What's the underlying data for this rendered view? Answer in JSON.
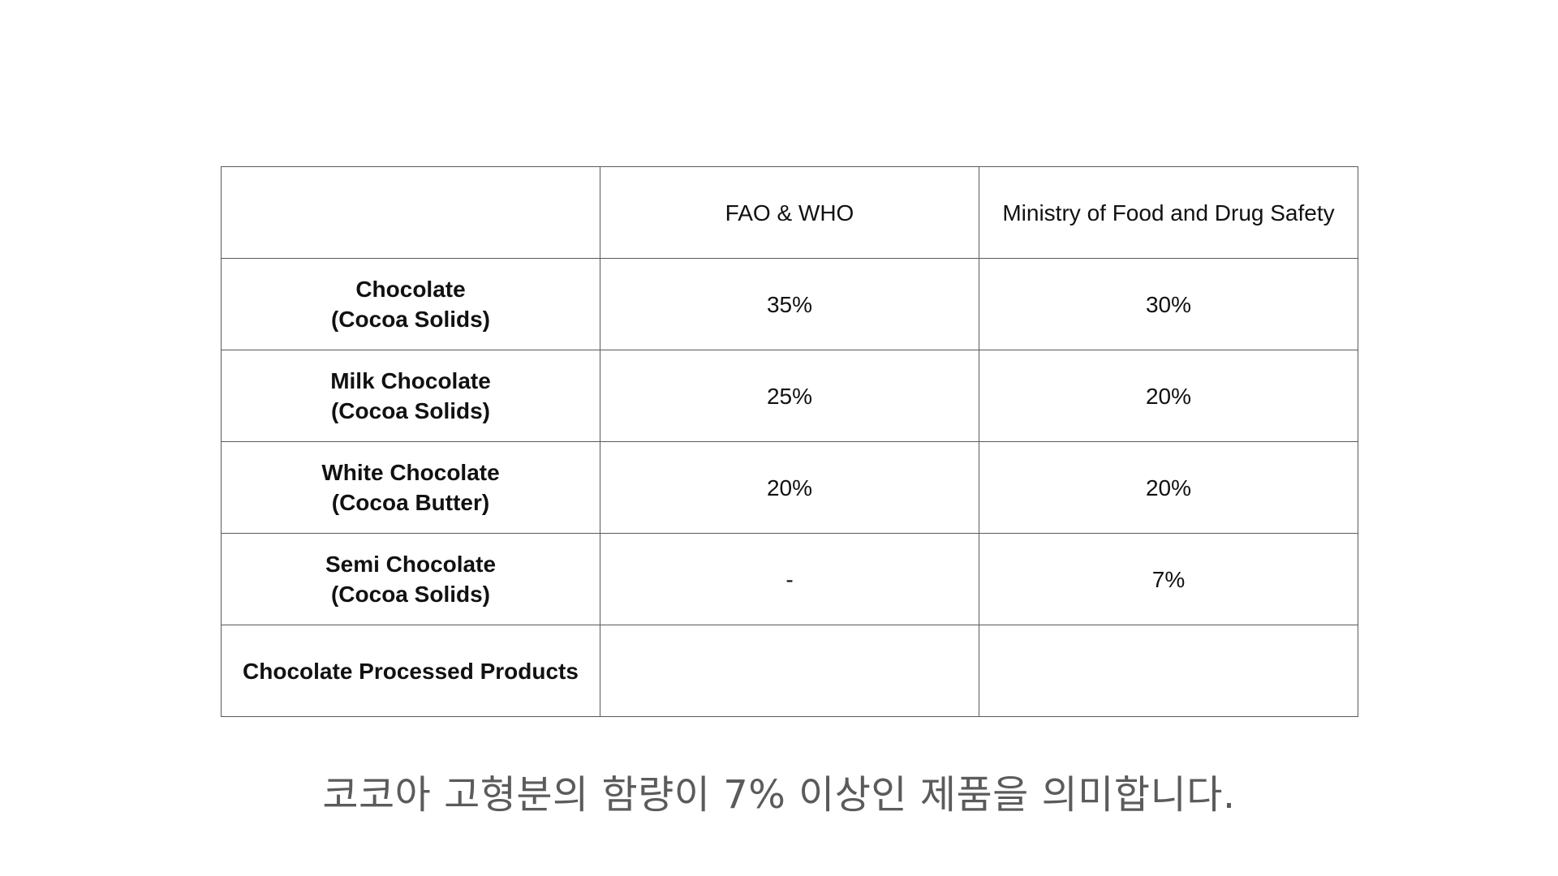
{
  "table": {
    "header": {
      "corner": "",
      "col1": "FAO & WHO",
      "col2": "Ministry of Food and Drug Safety"
    },
    "rows": [
      {
        "label_line1": "Chocolate",
        "label_line2": "(Cocoa Solids)",
        "fao_who": "35%",
        "mfds": "30%"
      },
      {
        "label_line1": "Milk Chocolate",
        "label_line2": "(Cocoa Solids)",
        "fao_who": "25%",
        "mfds": "20%"
      },
      {
        "label_line1": "White Chocolate",
        "label_line2": "(Cocoa Butter)",
        "fao_who": "20%",
        "mfds": "20%"
      },
      {
        "label_line1": "Semi Chocolate",
        "label_line2": "(Cocoa Solids)",
        "fao_who": "-",
        "mfds": "7%"
      },
      {
        "label_line1": "Chocolate Processed Products",
        "label_line2": "",
        "fao_who": "",
        "mfds": ""
      }
    ]
  },
  "caption": "코코아 고형분의 함량이 7% 이상인 제품을 의미합니다."
}
